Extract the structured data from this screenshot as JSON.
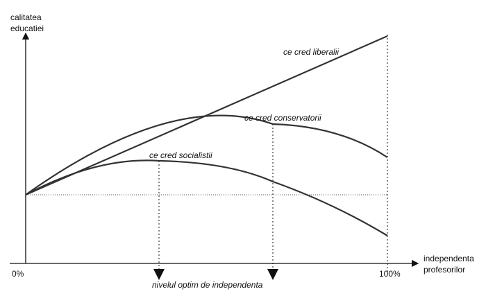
{
  "axes": {
    "y_label_line1": "calitatea",
    "y_label_line2": "educatiei",
    "x_label_line1": "independenta",
    "x_label_line2": "profesorilor",
    "x_tick_min": "0%",
    "x_tick_max": "100%"
  },
  "curves": {
    "liberal": "ce cred liberalii",
    "conservative": "ce cred conservatorii",
    "socialist": "ce cred socialistii"
  },
  "optimum_label": "nivelul optim de independenta",
  "colors": {
    "curve": "#333333",
    "axis": "#111111",
    "guide": "#888888"
  }
}
